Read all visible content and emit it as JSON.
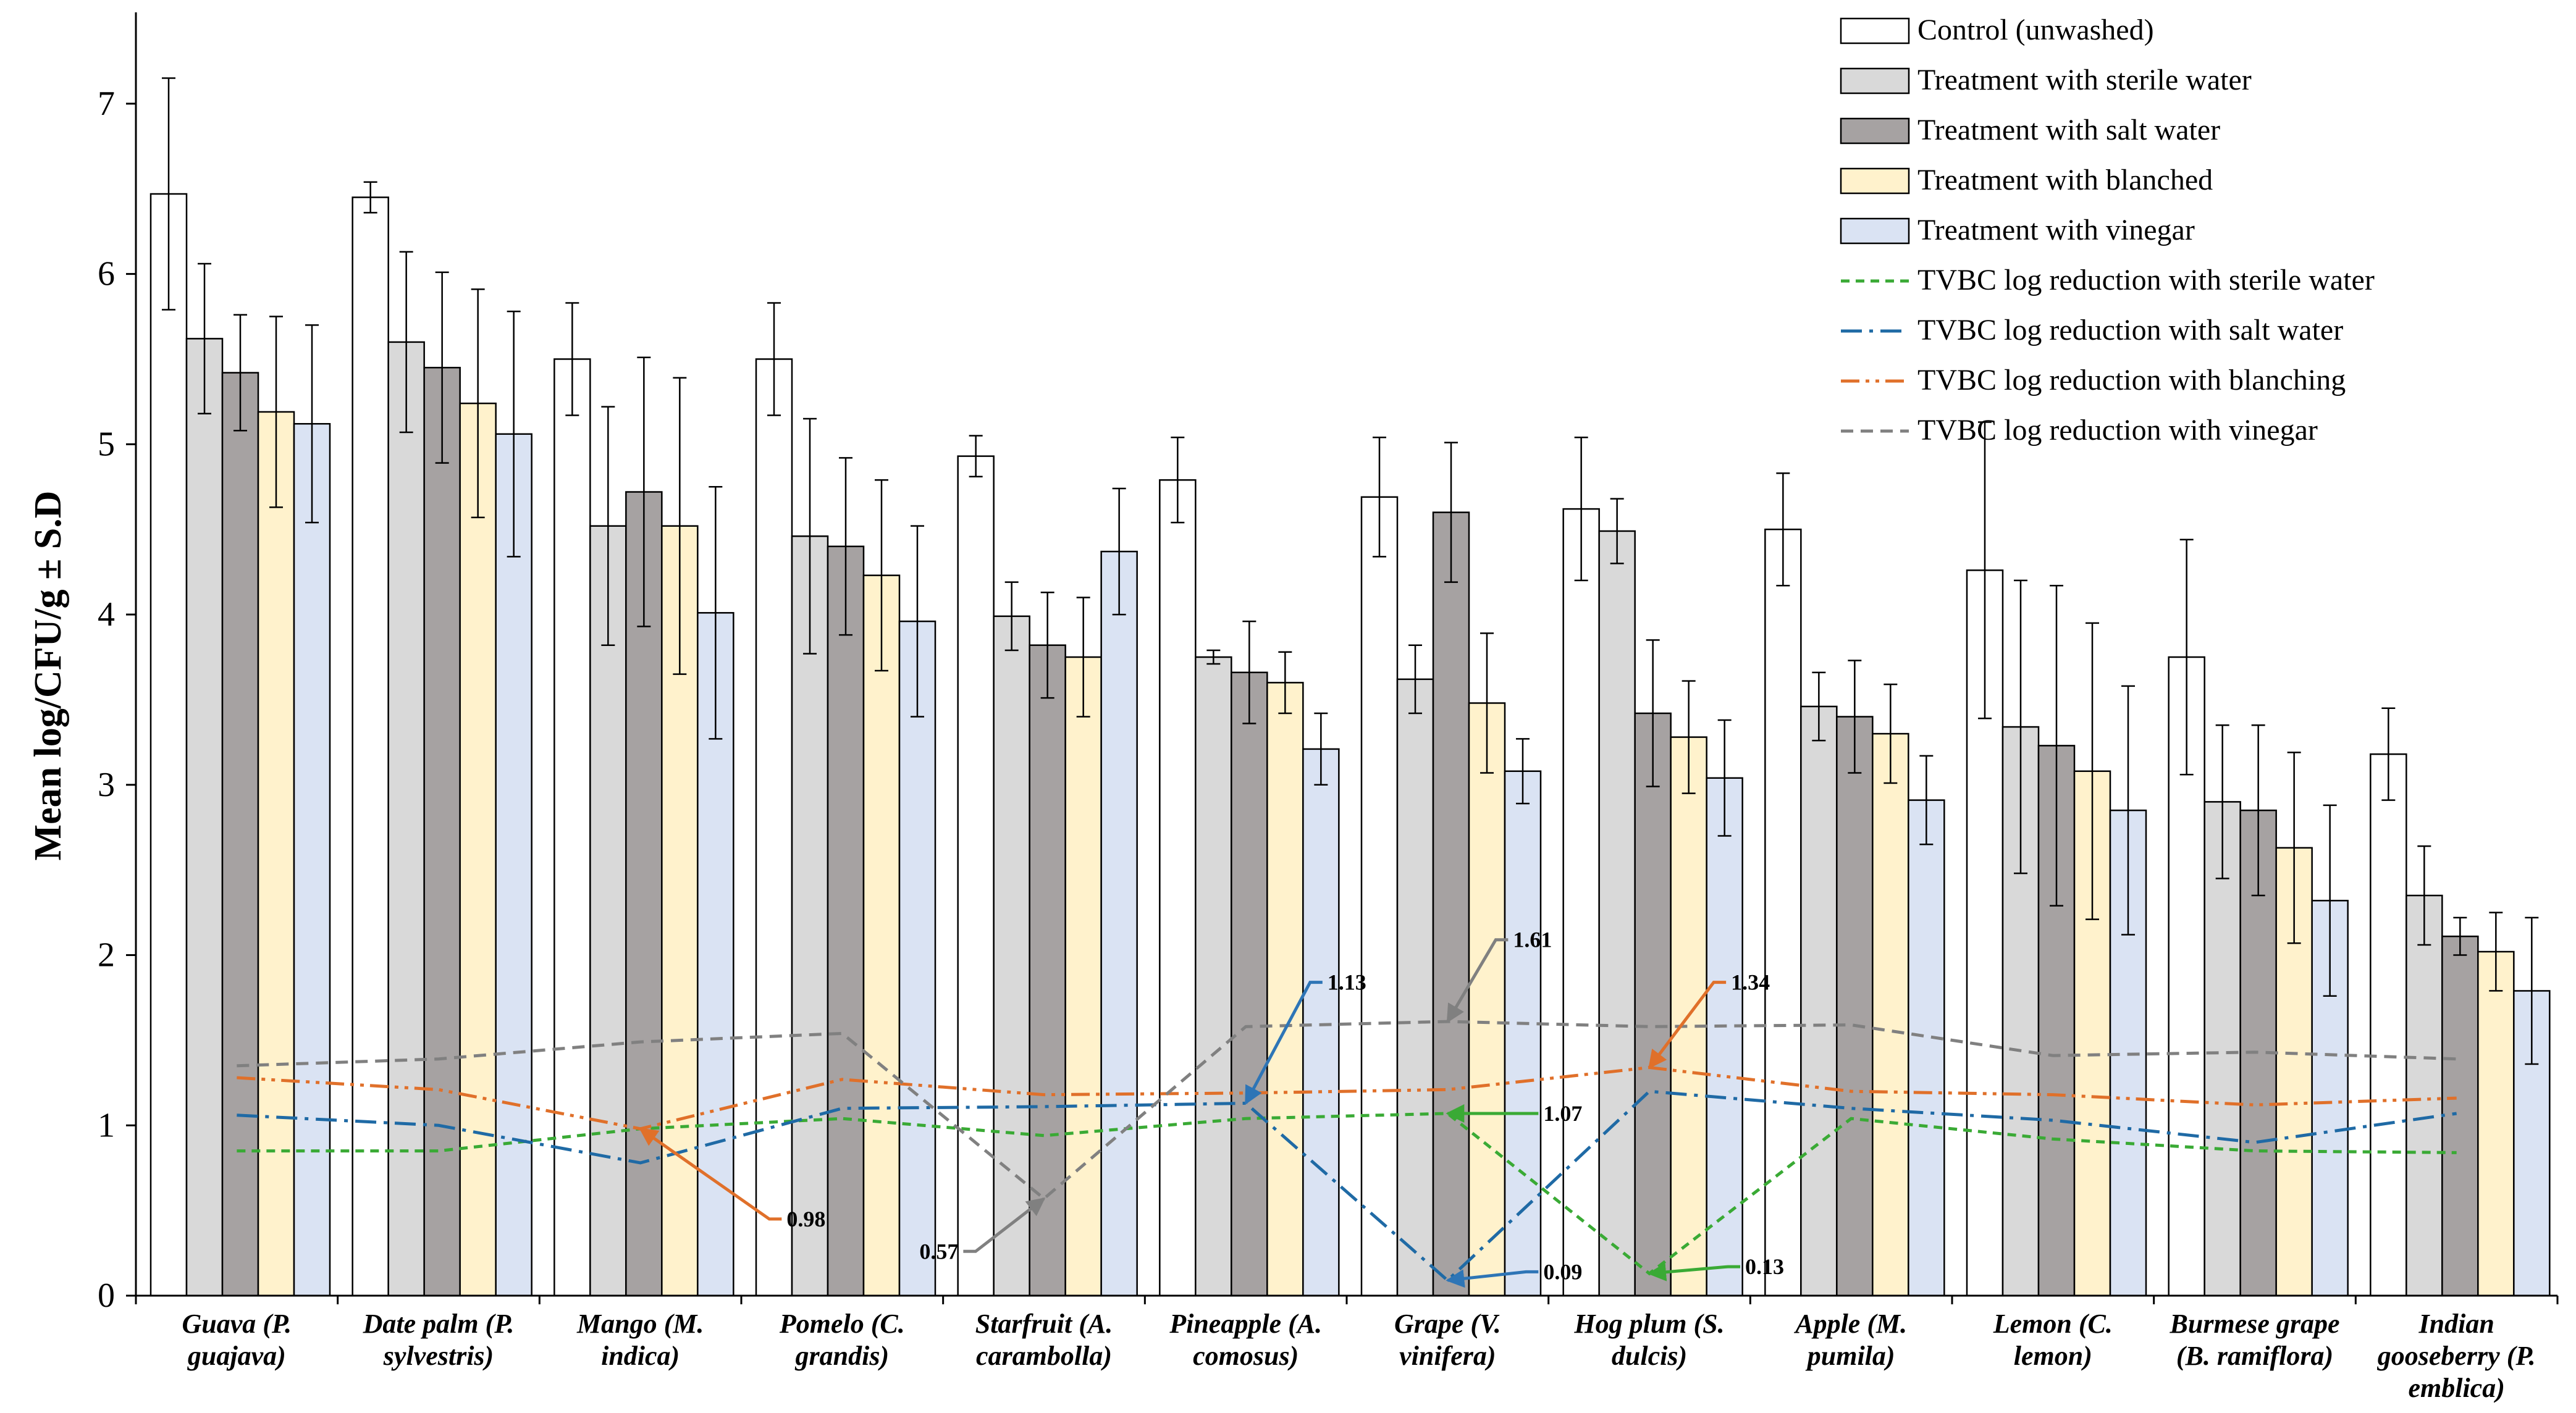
{
  "chart_data": {
    "type": "bar",
    "ylabel": "Mean log/CFU/g ± S.D",
    "xlabel": "",
    "ylim": [
      0,
      7.5
    ],
    "yticks": [
      0,
      1,
      2,
      3,
      4,
      5,
      6,
      7
    ],
    "categories": [
      [
        "Guava (P.",
        "guajava)"
      ],
      [
        "Date palm (P.",
        "sylvestris)"
      ],
      [
        "Mango (M.",
        "indica)"
      ],
      [
        "Pomelo (C.",
        "grandis)"
      ],
      [
        "Starfruit (A.",
        "carambolla)"
      ],
      [
        "Pineapple (A.",
        "comosus)"
      ],
      [
        "Grape (V.",
        "vinifera)"
      ],
      [
        "Hog plum (S.",
        "dulcis)"
      ],
      [
        "Apple (M.",
        "pumila)"
      ],
      [
        "Lemon (C.",
        "lemon)"
      ],
      [
        "Burmese grape",
        "(B. ramiflora)"
      ],
      [
        "Indian",
        "gooseberry (P.",
        "emblica)"
      ]
    ],
    "series": [
      {
        "name": "Control (unwashed)",
        "fill": "#ffffff",
        "values": [
          6.47,
          6.45,
          5.5,
          5.5,
          4.93,
          4.79,
          4.69,
          4.62,
          4.5,
          4.26,
          3.75,
          3.18
        ],
        "errors": [
          0.68,
          0.09,
          0.33,
          0.33,
          0.12,
          0.25,
          0.35,
          0.42,
          0.33,
          0.87,
          0.69,
          0.27
        ]
      },
      {
        "name": "Treatment with sterile water",
        "fill": "#d9d9d9",
        "values": [
          5.62,
          5.6,
          4.52,
          4.46,
          3.99,
          3.75,
          3.62,
          4.49,
          3.46,
          3.34,
          2.9,
          2.35
        ],
        "errors": [
          0.44,
          0.53,
          0.7,
          0.69,
          0.2,
          0.04,
          0.2,
          0.19,
          0.2,
          0.86,
          0.45,
          0.29
        ]
      },
      {
        "name": "Treatment with salt water",
        "fill": "#a6a2a2",
        "values": [
          5.42,
          5.45,
          4.72,
          4.4,
          3.82,
          3.66,
          4.6,
          3.42,
          3.4,
          3.23,
          2.85,
          2.11
        ],
        "errors": [
          0.34,
          0.56,
          0.79,
          0.52,
          0.31,
          0.3,
          0.41,
          0.43,
          0.33,
          0.94,
          0.5,
          0.11
        ]
      },
      {
        "name": "Treatment with blanched",
        "fill": "#fff2cc",
        "values": [
          5.19,
          5.24,
          4.52,
          4.23,
          3.75,
          3.6,
          3.48,
          3.28,
          3.3,
          3.08,
          2.63,
          2.02
        ],
        "errors": [
          0.56,
          0.67,
          0.87,
          0.56,
          0.35,
          0.18,
          0.41,
          0.33,
          0.29,
          0.87,
          0.56,
          0.23
        ]
      },
      {
        "name": "Treatment with vinegar",
        "fill": "#dae3f3",
        "values": [
          5.12,
          5.06,
          4.01,
          3.96,
          4.37,
          3.21,
          3.08,
          3.04,
          2.91,
          2.85,
          2.32,
          1.79
        ],
        "errors": [
          0.58,
          0.72,
          0.74,
          0.56,
          0.37,
          0.21,
          0.19,
          0.34,
          0.26,
          0.73,
          0.56,
          0.43
        ]
      }
    ],
    "lines": [
      {
        "name": "TVBC log reduction with sterile water",
        "color": "#3aaa35",
        "style": "dash",
        "values": [
          0.85,
          0.85,
          0.98,
          1.04,
          0.94,
          1.04,
          1.07,
          0.13,
          1.04,
          0.92,
          0.85,
          0.84
        ]
      },
      {
        "name": "TVBC log reduction with salt water",
        "color": "#1f6aa5",
        "style": "dashdot",
        "values": [
          1.06,
          1.0,
          0.78,
          1.1,
          1.11,
          1.13,
          0.09,
          1.2,
          1.1,
          1.03,
          0.9,
          1.07
        ]
      },
      {
        "name": "TVBC log reduction with blanching",
        "color": "#e0702a",
        "style": "dashdotdot",
        "values": [
          1.28,
          1.21,
          0.98,
          1.27,
          1.18,
          1.19,
          1.21,
          1.34,
          1.2,
          1.18,
          1.12,
          1.16
        ]
      },
      {
        "name": "TVBC log reduction with vinegar",
        "color": "#808080",
        "style": "dash2",
        "values": [
          1.35,
          1.39,
          1.49,
          1.54,
          0.57,
          1.58,
          1.61,
          1.58,
          1.59,
          1.41,
          1.43,
          1.39
        ]
      }
    ],
    "annotations": [
      {
        "text": "0.98",
        "category": 2,
        "value": 0.98,
        "color": "#e0702a",
        "label_value": 0.45,
        "label_offset": 0.7
      },
      {
        "text": "0.57",
        "category": 4,
        "value": 0.57,
        "color": "#808080",
        "label_value": 0.26,
        "label_offset": -0.4
      },
      {
        "text": "1.13",
        "category": 5,
        "value": 1.13,
        "color": "#2e75b6",
        "label_value": 1.84,
        "label_offset": 0.38
      },
      {
        "text": "1.61",
        "category": 6,
        "value": 1.61,
        "color": "#808080",
        "label_value": 2.09,
        "label_offset": 0.3
      },
      {
        "text": "1.07",
        "category": 6,
        "value": 1.07,
        "color": "#3aaa35",
        "label_value": 1.07,
        "label_offset": 0.45
      },
      {
        "text": "0.09",
        "category": 6,
        "value": 0.09,
        "color": "#2e75b6",
        "label_value": 0.14,
        "label_offset": 0.45
      },
      {
        "text": "1.34",
        "category": 7,
        "value": 1.34,
        "color": "#e0702a",
        "label_value": 1.84,
        "label_offset": 0.38
      },
      {
        "text": "0.13",
        "category": 7,
        "value": 0.13,
        "color": "#3aaa35",
        "label_value": 0.17,
        "label_offset": 0.45
      }
    ],
    "legend_position": "top-right"
  }
}
